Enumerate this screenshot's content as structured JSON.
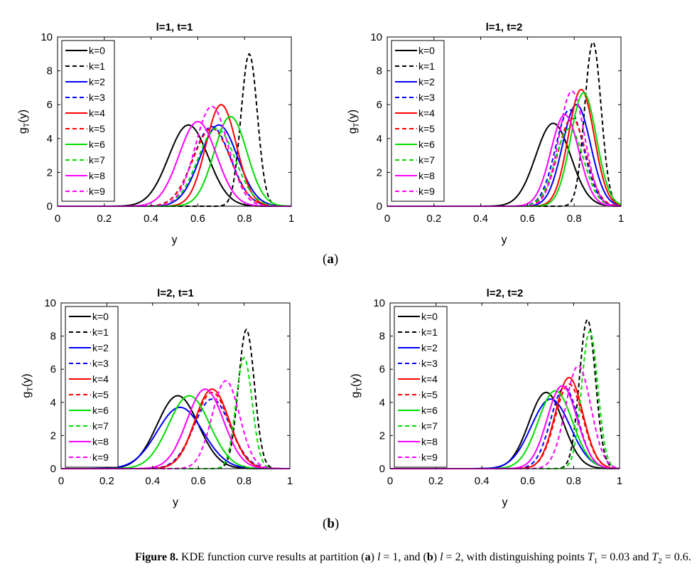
{
  "panels": [
    {
      "label": "a"
    },
    {
      "label": "b"
    }
  ],
  "chart_data": [
    {
      "type": "line",
      "title": "l=1, t=1",
      "xlabel": "y",
      "ylabel": "g_T(y)",
      "xlim": [
        0,
        1
      ],
      "ylim": [
        0,
        10
      ],
      "xticks": [
        "0",
        "0.2",
        "0.4",
        "0.6",
        "0.8",
        "1"
      ],
      "yticks": [
        "0",
        "2",
        "4",
        "6",
        "8",
        "10"
      ],
      "legend": "top-left",
      "grid": false,
      "series": [
        {
          "name": "k=0",
          "color": "#000000",
          "dash": false,
          "peak": 0.56,
          "height": 4.8,
          "width": 0.085
        },
        {
          "name": "k=1",
          "color": "#000000",
          "dash": true,
          "peak": 0.82,
          "height": 9.0,
          "width": 0.035
        },
        {
          "name": "k=2",
          "color": "#0000ff",
          "dash": false,
          "peak": 0.69,
          "height": 4.8,
          "width": 0.08
        },
        {
          "name": "k=3",
          "color": "#0000ff",
          "dash": true,
          "peak": 0.66,
          "height": 4.7,
          "width": 0.08
        },
        {
          "name": "k=4",
          "color": "#ff0000",
          "dash": false,
          "peak": 0.7,
          "height": 6.0,
          "width": 0.065
        },
        {
          "name": "k=5",
          "color": "#ff0000",
          "dash": true,
          "peak": 0.66,
          "height": 4.6,
          "width": 0.08
        },
        {
          "name": "k=6",
          "color": "#00dd00",
          "dash": false,
          "peak": 0.74,
          "height": 5.3,
          "width": 0.07
        },
        {
          "name": "k=7",
          "color": "#00dd00",
          "dash": true,
          "peak": 0.68,
          "height": 4.6,
          "width": 0.08
        },
        {
          "name": "k=8",
          "color": "#ff00ff",
          "dash": false,
          "peak": 0.6,
          "height": 5.0,
          "width": 0.08
        },
        {
          "name": "k=9",
          "color": "#ff00ff",
          "dash": true,
          "peak": 0.66,
          "height": 5.9,
          "width": 0.07
        }
      ]
    },
    {
      "type": "line",
      "title": "l=1, t=2",
      "xlabel": "y",
      "ylabel": "g_T(y)",
      "xlim": [
        0,
        1
      ],
      "ylim": [
        0,
        10
      ],
      "xticks": [
        "0",
        "0.2",
        "0.4",
        "0.6",
        "0.8",
        "1"
      ],
      "yticks": [
        "0",
        "2",
        "4",
        "6",
        "8",
        "10"
      ],
      "legend": "top-left",
      "grid": false,
      "series": [
        {
          "name": "k=0",
          "color": "#000000",
          "dash": false,
          "peak": 0.71,
          "height": 4.9,
          "width": 0.075
        },
        {
          "name": "k=1",
          "color": "#000000",
          "dash": true,
          "peak": 0.88,
          "height": 9.7,
          "width": 0.035
        },
        {
          "name": "k=2",
          "color": "#0000ff",
          "dash": false,
          "peak": 0.81,
          "height": 6.0,
          "width": 0.06
        },
        {
          "name": "k=3",
          "color": "#0000ff",
          "dash": true,
          "peak": 0.78,
          "height": 5.7,
          "width": 0.06
        },
        {
          "name": "k=4",
          "color": "#ff0000",
          "dash": false,
          "peak": 0.83,
          "height": 6.9,
          "width": 0.055
        },
        {
          "name": "k=5",
          "color": "#ff0000",
          "dash": true,
          "peak": 0.79,
          "height": 5.2,
          "width": 0.06
        },
        {
          "name": "k=6",
          "color": "#00dd00",
          "dash": false,
          "peak": 0.84,
          "height": 6.7,
          "width": 0.055
        },
        {
          "name": "k=7",
          "color": "#00dd00",
          "dash": true,
          "peak": 0.78,
          "height": 4.6,
          "width": 0.06
        },
        {
          "name": "k=8",
          "color": "#ff00ff",
          "dash": false,
          "peak": 0.76,
          "height": 5.4,
          "width": 0.06
        },
        {
          "name": "k=9",
          "color": "#ff00ff",
          "dash": true,
          "peak": 0.79,
          "height": 6.8,
          "width": 0.055
        }
      ]
    },
    {
      "type": "line",
      "title": "l=2, t=1",
      "xlabel": "y",
      "ylabel": "g_T(y)",
      "xlim": [
        0,
        1
      ],
      "ylim": [
        0,
        10
      ],
      "xticks": [
        "0",
        "0.2",
        "0.4",
        "0.6",
        "0.8",
        "1"
      ],
      "yticks": [
        "0",
        "2",
        "4",
        "6",
        "8",
        "10"
      ],
      "legend": "top-left",
      "grid": false,
      "series": [
        {
          "name": "k=0",
          "color": "#000000",
          "dash": false,
          "peak": 0.51,
          "height": 4.4,
          "width": 0.09
        },
        {
          "name": "k=1",
          "color": "#000000",
          "dash": true,
          "peak": 0.81,
          "height": 8.4,
          "width": 0.035
        },
        {
          "name": "k=2",
          "color": "#0000ff",
          "dash": false,
          "peak": 0.52,
          "height": 3.7,
          "width": 0.1
        },
        {
          "name": "k=3",
          "color": "#0000ff",
          "dash": true,
          "peak": 0.66,
          "height": 4.2,
          "width": 0.08
        },
        {
          "name": "k=4",
          "color": "#ff0000",
          "dash": false,
          "peak": 0.66,
          "height": 4.8,
          "width": 0.075
        },
        {
          "name": "k=5",
          "color": "#ff0000",
          "dash": true,
          "peak": 0.66,
          "height": 4.6,
          "width": 0.075
        },
        {
          "name": "k=6",
          "color": "#00dd00",
          "dash": false,
          "peak": 0.56,
          "height": 4.4,
          "width": 0.09
        },
        {
          "name": "k=7",
          "color": "#00dd00",
          "dash": true,
          "peak": 0.8,
          "height": 6.7,
          "width": 0.035
        },
        {
          "name": "k=8",
          "color": "#ff00ff",
          "dash": false,
          "peak": 0.63,
          "height": 4.8,
          "width": 0.08
        },
        {
          "name": "k=9",
          "color": "#ff00ff",
          "dash": true,
          "peak": 0.72,
          "height": 5.3,
          "width": 0.06
        }
      ]
    },
    {
      "type": "line",
      "title": "l=2, t=2",
      "xlabel": "y",
      "ylabel": "g_T(y)",
      "xlim": [
        0,
        1
      ],
      "ylim": [
        0,
        10
      ],
      "xticks": [
        "0",
        "0.2",
        "0.4",
        "0.6",
        "0.8",
        "1"
      ],
      "yticks": [
        "0",
        "2",
        "4",
        "6",
        "8",
        "10"
      ],
      "legend": "top-left",
      "grid": false,
      "series": [
        {
          "name": "k=0",
          "color": "#000000",
          "dash": false,
          "peak": 0.68,
          "height": 4.6,
          "width": 0.075
        },
        {
          "name": "k=1",
          "color": "#000000",
          "dash": true,
          "peak": 0.86,
          "height": 9.0,
          "width": 0.035
        },
        {
          "name": "k=2",
          "color": "#0000ff",
          "dash": false,
          "peak": 0.7,
          "height": 4.2,
          "width": 0.085
        },
        {
          "name": "k=3",
          "color": "#0000ff",
          "dash": true,
          "peak": 0.76,
          "height": 4.9,
          "width": 0.06
        },
        {
          "name": "k=4",
          "color": "#ff0000",
          "dash": false,
          "peak": 0.78,
          "height": 5.5,
          "width": 0.06
        },
        {
          "name": "k=5",
          "color": "#ff0000",
          "dash": true,
          "peak": 0.78,
          "height": 5.1,
          "width": 0.06
        },
        {
          "name": "k=6",
          "color": "#00dd00",
          "dash": false,
          "peak": 0.72,
          "height": 4.7,
          "width": 0.075
        },
        {
          "name": "k=7",
          "color": "#00dd00",
          "dash": true,
          "peak": 0.87,
          "height": 8.3,
          "width": 0.035
        },
        {
          "name": "k=8",
          "color": "#ff00ff",
          "dash": false,
          "peak": 0.75,
          "height": 5.0,
          "width": 0.065
        },
        {
          "name": "k=9",
          "color": "#ff00ff",
          "dash": true,
          "peak": 0.82,
          "height": 6.2,
          "width": 0.055
        }
      ]
    }
  ],
  "caption": {
    "head": "Figure 8.",
    "text_1": " KDE function curve results at partition (",
    "a": "a",
    "text_2": ") ",
    "l1": "l",
    "eq1": " = 1, and (",
    "b": "b",
    "text_3": ") ",
    "l2": "l",
    "eq2": " = 2, with distinguishing points ",
    "T1": "T",
    "T1sub": "1",
    "eq3": " = 0.03 and ",
    "T2": "T",
    "T2sub": "2",
    "eq4": " = 0.6."
  }
}
